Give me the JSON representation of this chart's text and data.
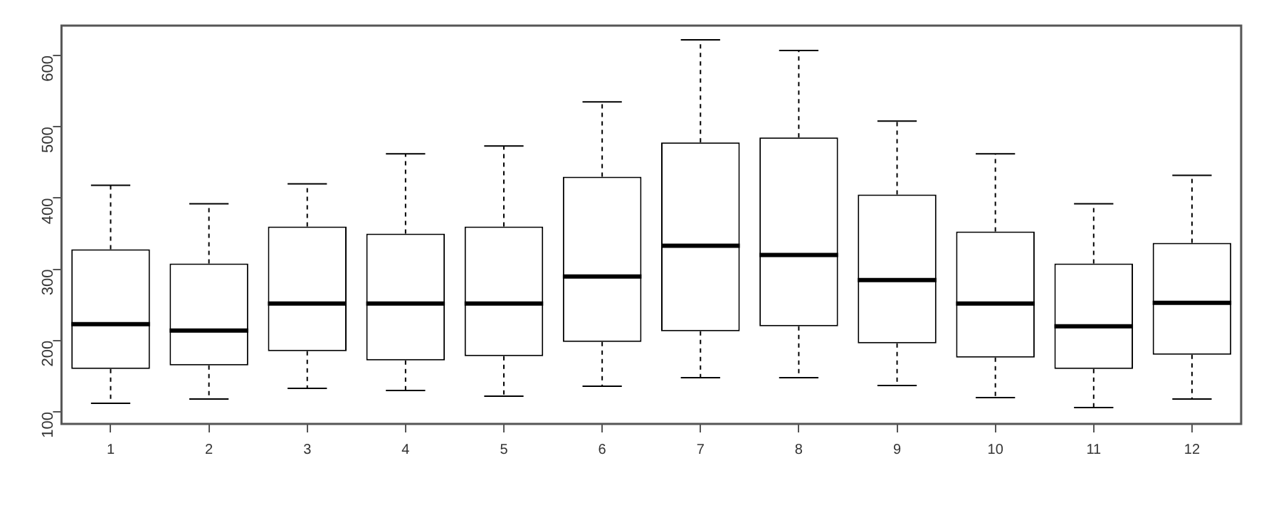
{
  "chart_data": {
    "type": "box",
    "categories": [
      "1",
      "2",
      "3",
      "4",
      "5",
      "6",
      "7",
      "8",
      "9",
      "10",
      "11",
      "12"
    ],
    "boxes": [
      {
        "low": 112,
        "q1": 160,
        "median": 223,
        "q3": 328,
        "high": 418
      },
      {
        "low": 118,
        "q1": 165,
        "median": 214,
        "q3": 308,
        "high": 392
      },
      {
        "low": 133,
        "q1": 185,
        "median": 252,
        "q3": 360,
        "high": 420
      },
      {
        "low": 130,
        "q1": 172,
        "median": 252,
        "q3": 350,
        "high": 462
      },
      {
        "low": 122,
        "q1": 178,
        "median": 252,
        "q3": 360,
        "high": 473
      },
      {
        "low": 136,
        "q1": 198,
        "median": 290,
        "q3": 430,
        "high": 535
      },
      {
        "low": 148,
        "q1": 213,
        "median": 333,
        "q3": 478,
        "high": 622
      },
      {
        "low": 148,
        "q1": 220,
        "median": 320,
        "q3": 485,
        "high": 607
      },
      {
        "low": 137,
        "q1": 196,
        "median": 285,
        "q3": 405,
        "high": 508
      },
      {
        "low": 120,
        "q1": 176,
        "median": 252,
        "q3": 353,
        "high": 462
      },
      {
        "low": 106,
        "q1": 160,
        "median": 220,
        "q3": 308,
        "high": 392
      },
      {
        "low": 118,
        "q1": 180,
        "median": 253,
        "q3": 337,
        "high": 432
      }
    ],
    "color": "#000000",
    "ylim": [
      83,
      642
    ],
    "yticks": [
      100,
      200,
      300,
      400,
      500,
      600
    ],
    "grid": false,
    "legend": false
  }
}
